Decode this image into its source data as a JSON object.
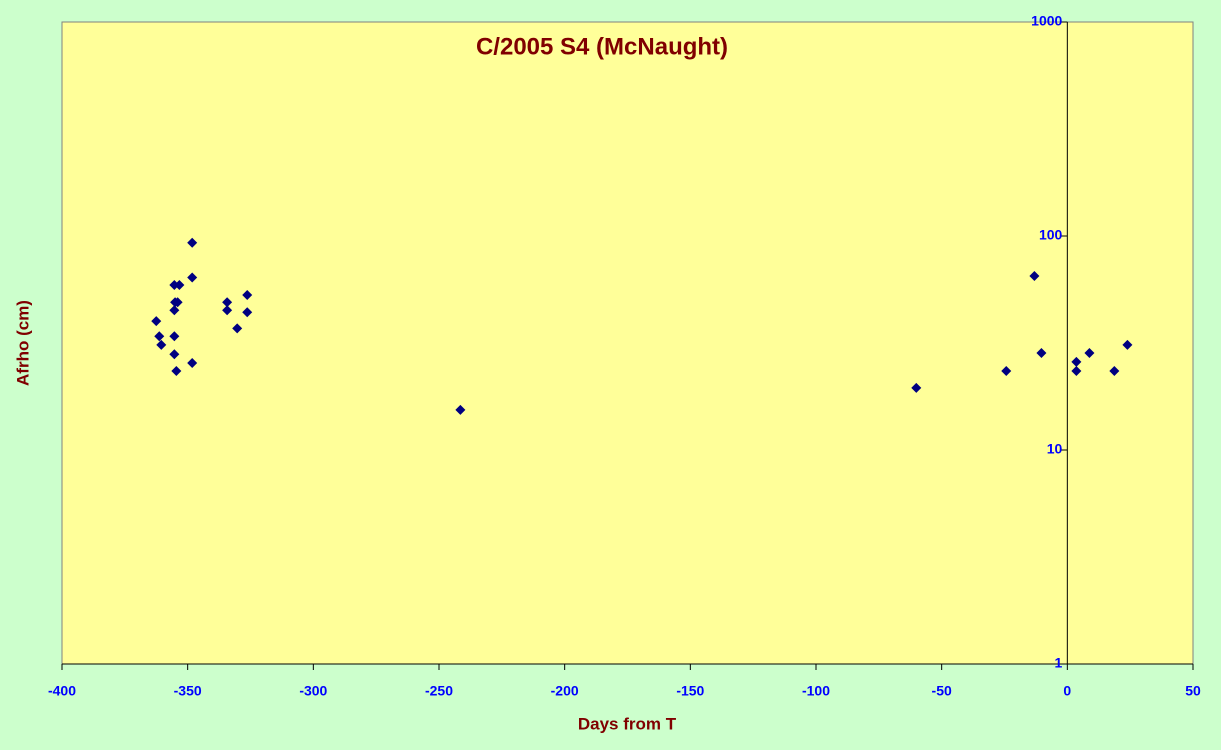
{
  "chart_data": {
    "type": "scatter",
    "title": "C/2005 S4 (McNaught)",
    "x_label": "Days from T",
    "y_label": "Afrho (cm)",
    "xlim": [
      -400,
      50
    ],
    "xticks": [
      -400,
      -350,
      -300,
      -250,
      -200,
      -150,
      -100,
      -50,
      0,
      50
    ],
    "ylim": [
      1,
      1000
    ],
    "yticks": [
      1,
      10,
      100,
      1000
    ],
    "log_y": true,
    "series": [
      {
        "color": "#000080",
        "x": [
          -362.5,
          -361.3,
          -360.5,
          -355.3,
          -353.3,
          -355,
          -354,
          -355.3,
          -355.3,
          -355.3,
          -354.5,
          -348.2,
          -348.2,
          -348.2,
          -334.3,
          -334.3,
          -330.3,
          -326.3,
          -326.3,
          -241.5,
          -60.1,
          -24.3,
          -13.1,
          -10.3,
          3.6,
          3.6,
          8.8,
          18.7,
          23.9
        ],
        "values": [
          40,
          34,
          31,
          59,
          59,
          49,
          49,
          45,
          34,
          28,
          23.4,
          93,
          64,
          25.5,
          49,
          45,
          37,
          53,
          44,
          15.4,
          19.5,
          23.4,
          65,
          28.4,
          25.8,
          23.4,
          28.4,
          23.4,
          31
        ]
      }
    ]
  }
}
